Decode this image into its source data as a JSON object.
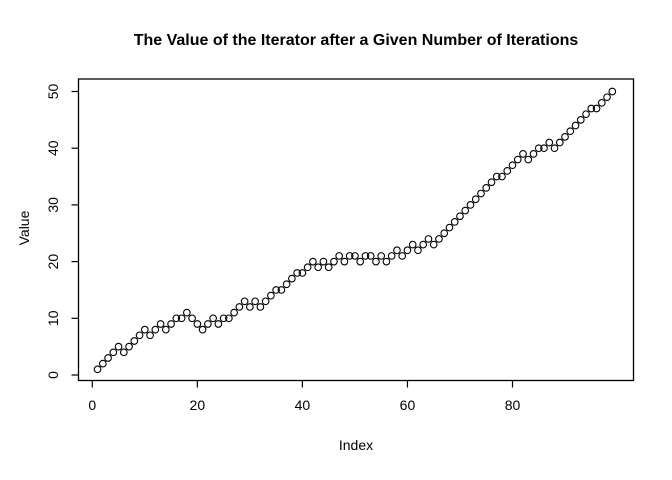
{
  "chart_data": {
    "type": "scatter",
    "title": "The Value of the Iterator after a Given Number of Iterations",
    "xlabel": "Index",
    "ylabel": "Value",
    "point_style": "open-circle",
    "grid": false,
    "legend_position": "none",
    "x_ticks": [
      0,
      20,
      40,
      60,
      80
    ],
    "y_ticks": [
      0,
      10,
      20,
      30,
      40,
      50
    ],
    "xlim": [
      -2.9,
      102.9
    ],
    "ylim": [
      -1,
      52
    ],
    "x": [
      1,
      2,
      3,
      4,
      5,
      6,
      7,
      8,
      9,
      10,
      11,
      12,
      13,
      14,
      15,
      16,
      17,
      18,
      19,
      20,
      21,
      22,
      23,
      24,
      25,
      26,
      27,
      28,
      29,
      30,
      31,
      32,
      33,
      34,
      35,
      36,
      37,
      38,
      39,
      40,
      41,
      42,
      43,
      44,
      45,
      46,
      47,
      48,
      49,
      50,
      51,
      52,
      53,
      54,
      55,
      56,
      57,
      58,
      59,
      60,
      61,
      62,
      63,
      64,
      65,
      66,
      67,
      68,
      69,
      70,
      71,
      72,
      73,
      74,
      75,
      76,
      77,
      78,
      79,
      80,
      81,
      82,
      83,
      84,
      85,
      86,
      87,
      88,
      89,
      90,
      91,
      92,
      93,
      94,
      95,
      96,
      97,
      98,
      99
    ],
    "values": [
      1,
      2,
      3,
      4,
      5,
      4,
      5,
      6,
      7,
      8,
      7,
      8,
      9,
      8,
      9,
      10,
      10,
      11,
      10,
      9,
      8,
      9,
      10,
      9,
      10,
      10,
      11,
      12,
      13,
      12,
      13,
      12,
      13,
      14,
      15,
      15,
      16,
      17,
      18,
      18,
      19,
      20,
      19,
      20,
      19,
      20,
      21,
      20,
      21,
      21,
      20,
      21,
      21,
      20,
      21,
      20,
      21,
      22,
      21,
      22,
      23,
      22,
      23,
      24,
      23,
      24,
      25,
      26,
      27,
      28,
      29,
      30,
      31,
      32,
      33,
      34,
      35,
      35,
      36,
      37,
      38,
      39,
      38,
      39,
      40,
      40,
      41,
      40,
      41,
      42,
      43,
      44,
      45,
      46,
      47,
      47,
      48,
      49,
      50
    ],
    "colors": {
      "points": "#000000",
      "axis": "#000000",
      "background": "#ffffff",
      "text": "#000000"
    }
  }
}
